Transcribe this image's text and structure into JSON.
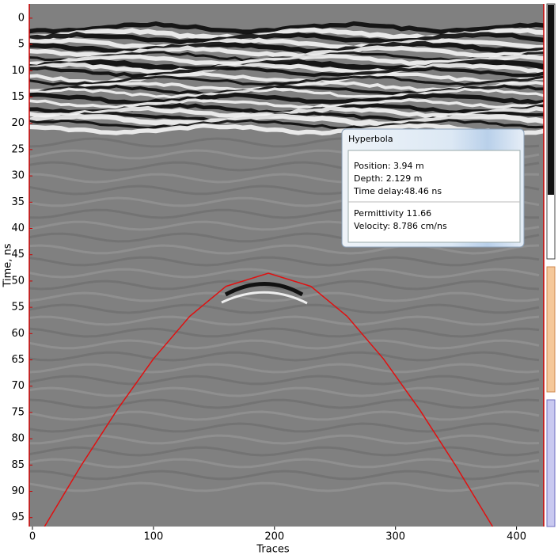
{
  "chart_data": {
    "type": "radargram",
    "xlabel": "Traces",
    "ylabel": "Time, ns",
    "xlim": [
      -2.6,
      422.5
    ],
    "ylim": [
      -2.7,
      96.7
    ],
    "xticks": [
      0,
      100,
      200,
      300,
      400
    ],
    "yticks": [
      0,
      5,
      10,
      15,
      20,
      25,
      30,
      35,
      40,
      45,
      50,
      55,
      60,
      65,
      70,
      75,
      80,
      85,
      90,
      95
    ],
    "series": [
      {
        "color": "#e01010",
        "x": [
          10,
          40,
          70,
          100,
          130,
          160,
          195,
          230,
          260,
          290,
          320,
          350,
          382
        ],
        "values": [
          96.7,
          85.2,
          74.5,
          64.8,
          56.7,
          51.0,
          48.5,
          51.0,
          56.7,
          64.8,
          74.5,
          85.2,
          97.4
        ]
      }
    ]
  },
  "panel": {
    "title": "Hyperbola",
    "rows": [
      "Position:  3.94 m",
      "Depth:  2.129 m",
      "Time delay:48.46 ns",
      "Permittivity  11.66",
      "Velocity:  8.786 cm/ns"
    ]
  }
}
